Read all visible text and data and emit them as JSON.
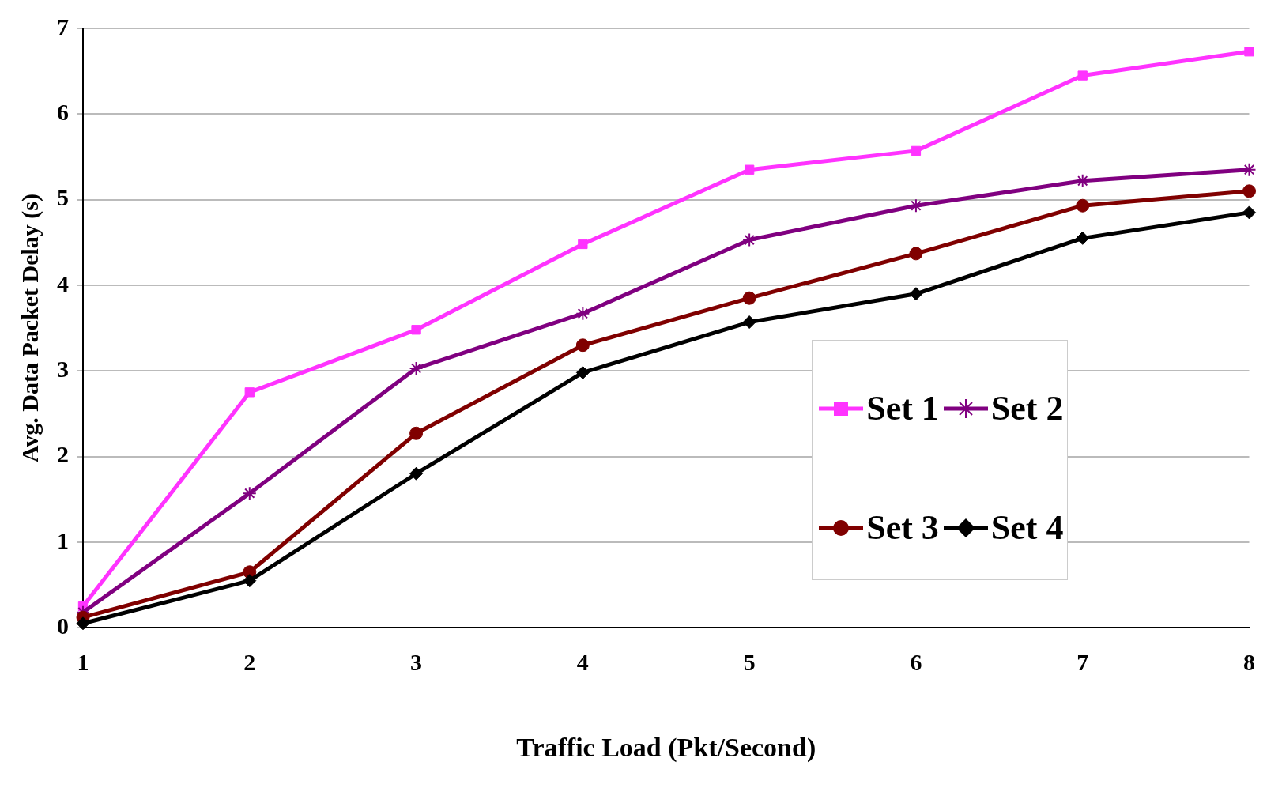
{
  "chart_data": {
    "type": "line",
    "xlabel": "Traffic Load (Pkt/Second)",
    "ylabel": "Avg. Data Packet Delay (s)",
    "x": [
      1,
      2,
      3,
      4,
      5,
      6,
      7,
      8
    ],
    "xlim": [
      1,
      8
    ],
    "xticks": [
      1,
      2,
      3,
      4,
      5,
      6,
      7,
      8
    ],
    "ylim": [
      0,
      7
    ],
    "yticks": [
      0,
      1,
      2,
      3,
      4,
      5,
      6,
      7
    ],
    "grid": "y",
    "legend": "right",
    "series": [
      {
        "name": "Set 1",
        "color": "#ff33ff",
        "marker": "square",
        "values": [
          0.25,
          2.75,
          3.48,
          4.48,
          5.35,
          5.57,
          6.45,
          6.73
        ]
      },
      {
        "name": "Set 2",
        "color": "#800080",
        "marker": "cross",
        "values": [
          0.18,
          1.57,
          3.03,
          3.67,
          4.53,
          4.93,
          5.22,
          5.35
        ]
      },
      {
        "name": "Set 3",
        "color": "#800000",
        "marker": "circle",
        "values": [
          0.12,
          0.65,
          2.27,
          3.3,
          3.85,
          4.37,
          4.93,
          5.1
        ]
      },
      {
        "name": "Set 4",
        "color": "#000000",
        "marker": "diamond",
        "values": [
          0.05,
          0.55,
          1.8,
          2.98,
          3.57,
          3.9,
          4.55,
          4.85
        ]
      }
    ]
  }
}
